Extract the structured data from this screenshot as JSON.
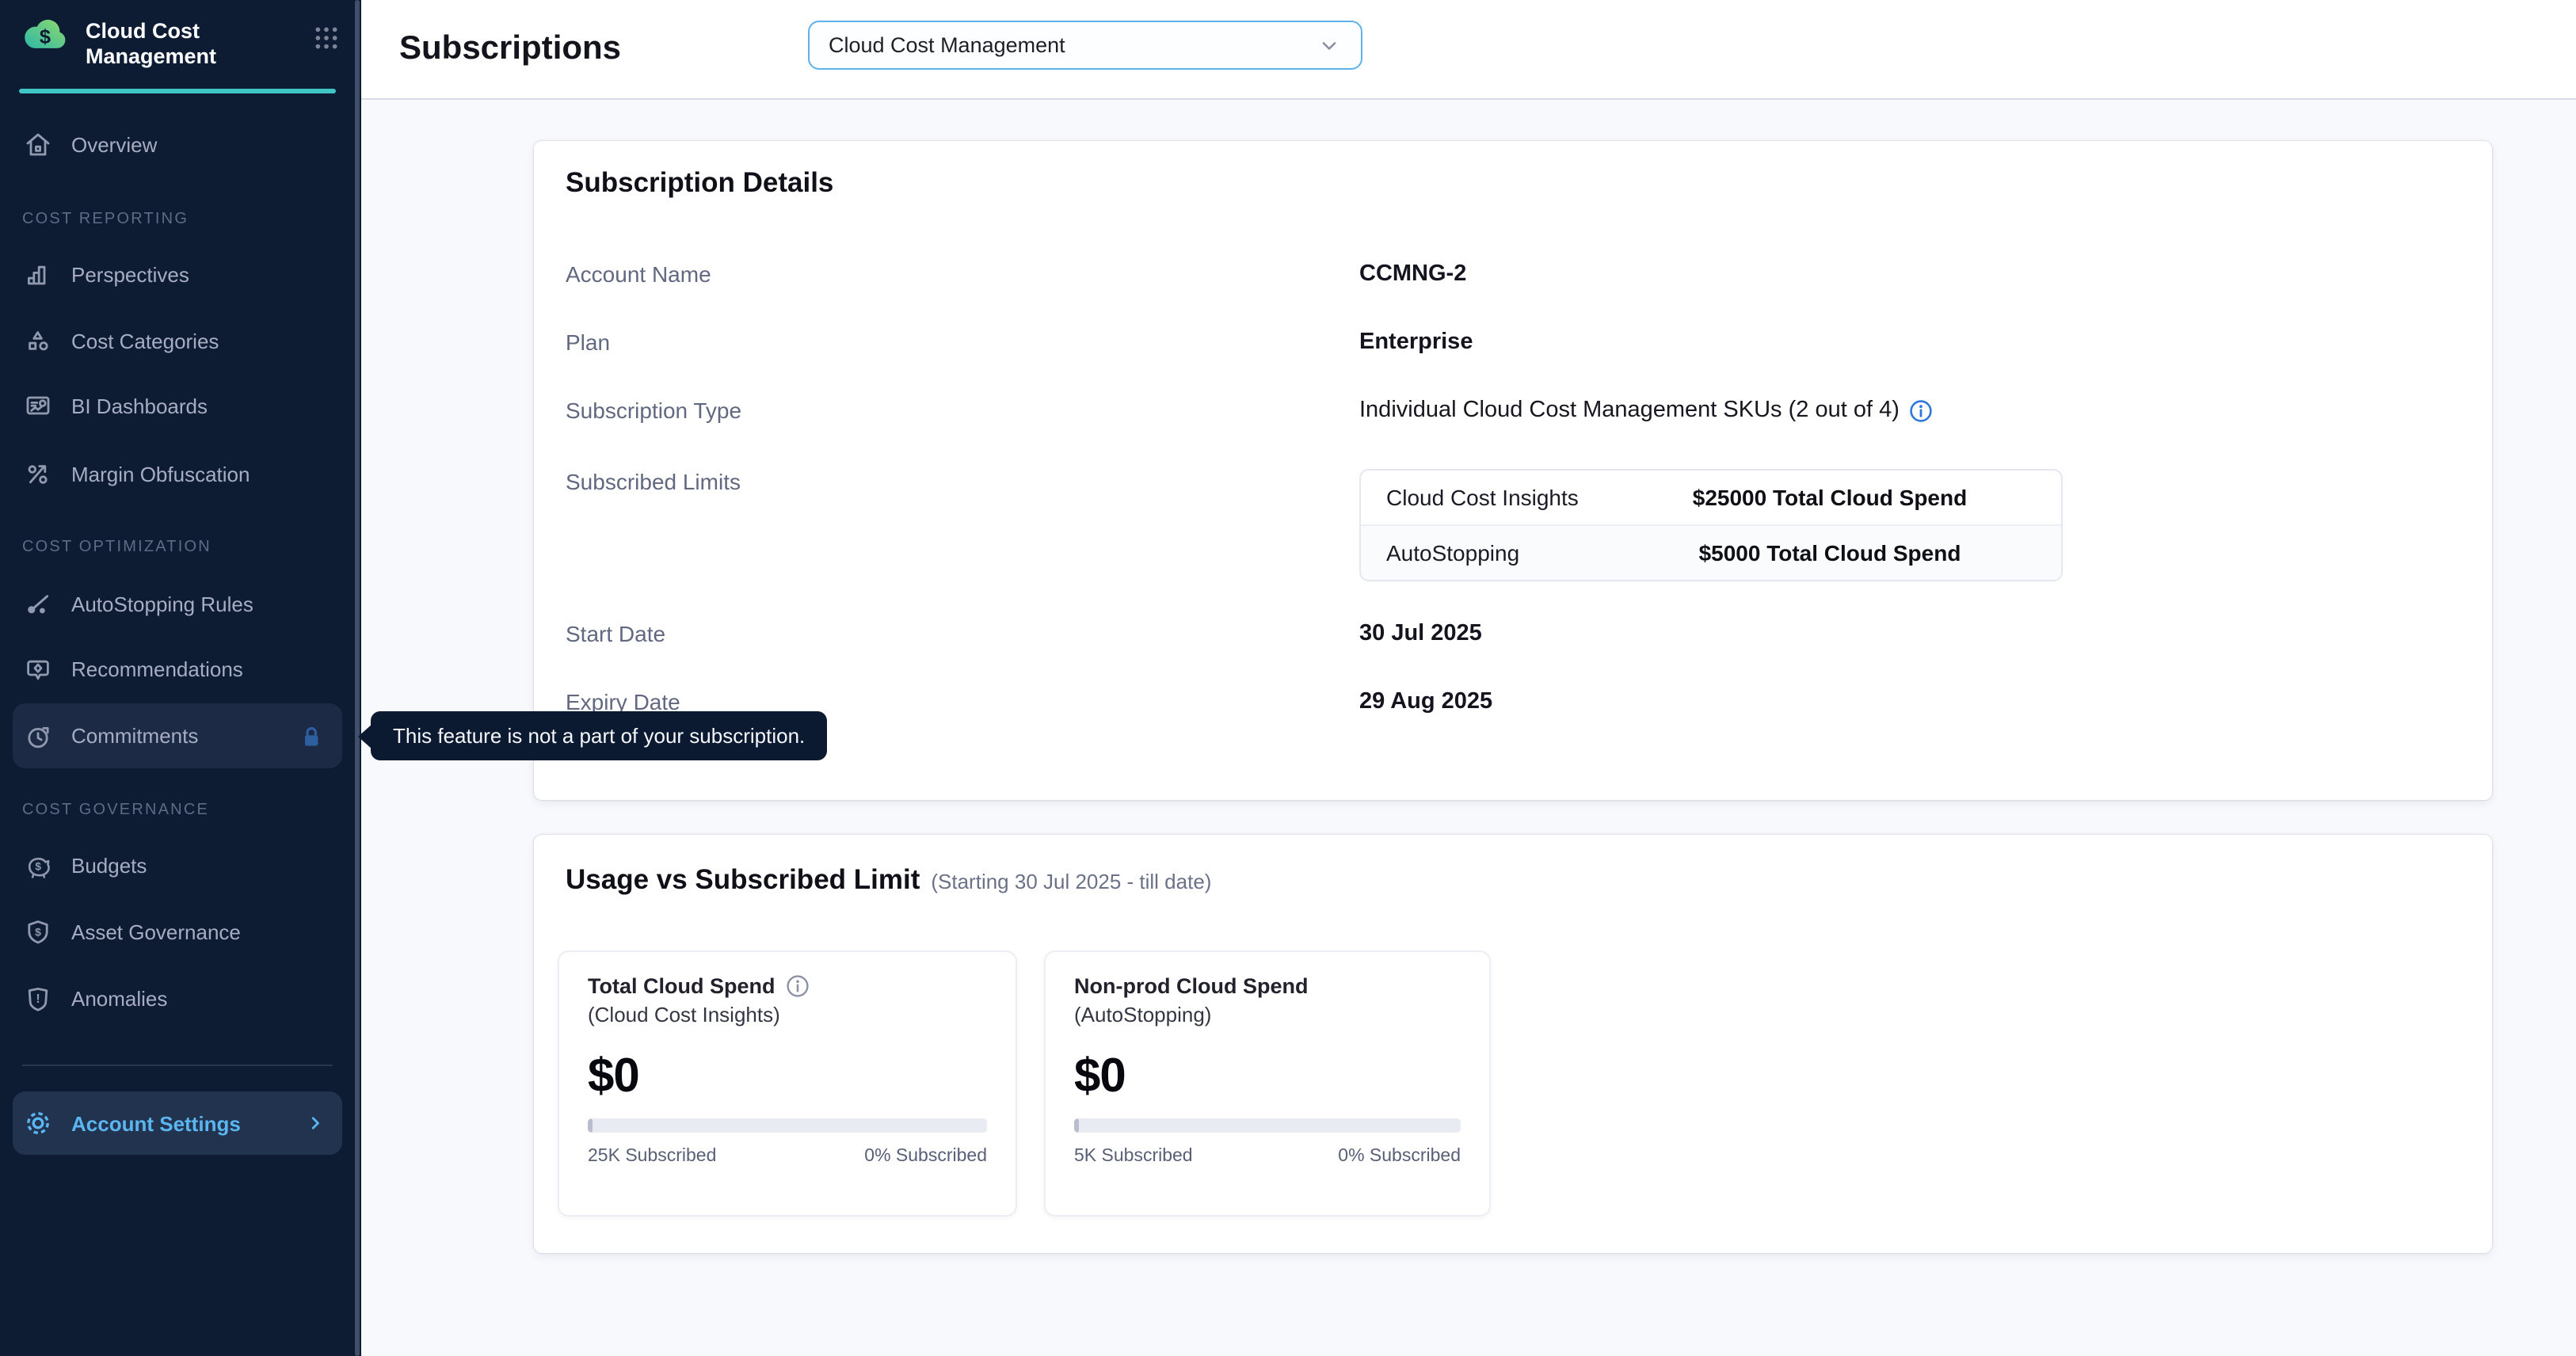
{
  "app": {
    "product_title": "Cloud Cost Management"
  },
  "sidebar": {
    "nav": [
      {
        "label": "Overview"
      },
      {
        "section": "COST REPORTING"
      },
      {
        "label": "Perspectives"
      },
      {
        "label": "Cost Categories"
      },
      {
        "label": "BI Dashboards"
      },
      {
        "label": "Margin Obfuscation"
      },
      {
        "section": "COST OPTIMIZATION"
      },
      {
        "label": "AutoStopping Rules"
      },
      {
        "label": "Recommendations"
      },
      {
        "label": "Commitments",
        "locked": true
      },
      {
        "section": "COST GOVERNANCE"
      },
      {
        "label": "Budgets"
      },
      {
        "label": "Asset Governance"
      },
      {
        "label": "Anomalies"
      }
    ],
    "account_settings_label": "Account Settings"
  },
  "header": {
    "title": "Subscriptions",
    "module_select_value": "Cloud Cost Management"
  },
  "tooltip": {
    "text": "This feature is not a part of your subscription."
  },
  "subscription_details": {
    "title": "Subscription Details",
    "account_name_label": "Account Name",
    "account_name_value": "CCMNG-2",
    "plan_label": "Plan",
    "plan_value": "Enterprise",
    "subscription_type_label": "Subscription Type",
    "subscription_type_value": "Individual Cloud Cost Management SKUs (2 out of 4)",
    "subscribed_limits_label": "Subscribed Limits",
    "limits_table": {
      "rows": [
        {
          "name": "Cloud Cost Insights",
          "value": "$25000 Total Cloud Spend"
        },
        {
          "name": "AutoStopping",
          "value": "$5000 Total Cloud Spend"
        }
      ]
    },
    "start_date_label": "Start Date",
    "start_date_value": "30 Jul 2025",
    "expiry_date_label": "Expiry Date",
    "expiry_date_value": "29 Aug 2025"
  },
  "usage": {
    "title": "Usage vs Subscribed Limit",
    "subtitle": "(Starting 30 Jul 2025 - till date)",
    "cards": [
      {
        "title": "Total Cloud Spend",
        "subtitle": "(Cloud Cost Insights)",
        "amount": "$0",
        "subscribed_label": "25K Subscribed",
        "percent_label": "0% Subscribed",
        "progress_percent": 0
      },
      {
        "title": "Non-prod Cloud Spend",
        "subtitle": "(AutoStopping)",
        "amount": "$0",
        "subscribed_label": "5K Subscribed",
        "percent_label": "0% Subscribed",
        "progress_percent": 0
      }
    ]
  },
  "colors": {
    "sidebar_bg": "#0e1c33",
    "accent_teal": "#3fc6c4",
    "active_link_blue": "#5bb6f0",
    "lock_blue": "#2d5f9f",
    "info_blue": "#2f77dd",
    "tooltip_bg": "#0b1a30",
    "page_bg": "#f8f9fd"
  }
}
